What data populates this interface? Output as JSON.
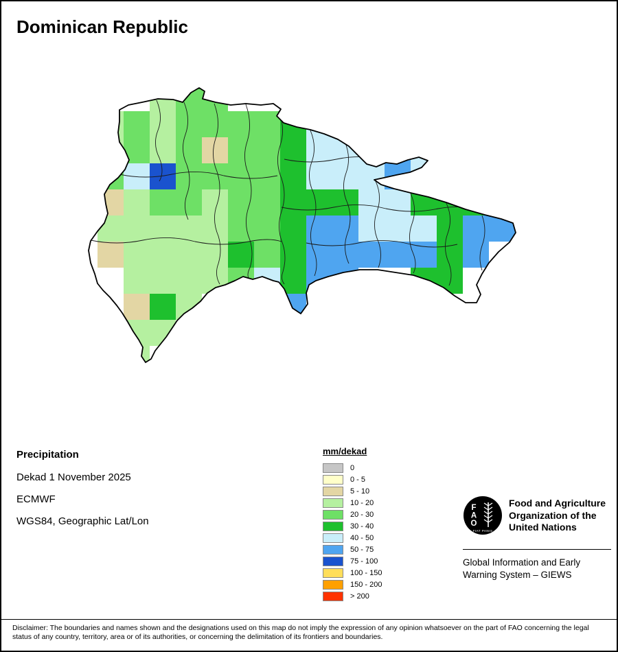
{
  "title": "Dominican Republic",
  "info": {
    "product": "Precipitation",
    "dekad": "Dekad 1 November 2025",
    "source": "ECMWF",
    "projection": "WGS84, Geographic Lat/Lon"
  },
  "legend": {
    "title": "mm/dekad",
    "entries": [
      {
        "label": "0",
        "color": "#C6C6C6"
      },
      {
        "label": "0 - 5",
        "color": "#FFFFC9"
      },
      {
        "label": "5 - 10",
        "color": "#E3D6A4"
      },
      {
        "label": "10 - 20",
        "color": "#B5F0A0"
      },
      {
        "label": "20 - 30",
        "color": "#6EE066"
      },
      {
        "label": "30 - 40",
        "color": "#1EC02E"
      },
      {
        "label": "40 - 50",
        "color": "#C9EEFA"
      },
      {
        "label": "50 - 75",
        "color": "#4FA5F0"
      },
      {
        "label": "75 - 100",
        "color": "#1A53CE"
      },
      {
        "label": "100 - 150",
        "color": "#FFDE5A"
      },
      {
        "label": "150 - 200",
        "color": "#FFA000"
      },
      {
        "label": "> 200",
        "color": "#FF3300"
      }
    ]
  },
  "map": {
    "palette": {
      "tan": "#E3D6A4",
      "lg": "#B5F0A0",
      "mg": "#6EE066",
      "g": "#1EC02E",
      "lc": "#C9EEFA",
      "b": "#4FA5F0",
      "db": "#1A53CE"
    },
    "cells": [
      [
        2,
        0,
        "lg"
      ],
      [
        3,
        0,
        "mg"
      ],
      [
        4,
        0,
        "mg"
      ],
      [
        0,
        1,
        "lg"
      ],
      [
        1,
        1,
        "mg"
      ],
      [
        2,
        1,
        "lg"
      ],
      [
        3,
        1,
        "mg"
      ],
      [
        4,
        1,
        "mg"
      ],
      [
        5,
        1,
        "mg"
      ],
      [
        6,
        1,
        "mg"
      ],
      [
        7,
        1,
        "g"
      ],
      [
        8,
        1,
        "lc"
      ],
      [
        0,
        2,
        "lg"
      ],
      [
        1,
        2,
        "mg"
      ],
      [
        2,
        2,
        "lg"
      ],
      [
        3,
        2,
        "mg"
      ],
      [
        4,
        2,
        "tan"
      ],
      [
        5,
        2,
        "mg"
      ],
      [
        6,
        2,
        "mg"
      ],
      [
        7,
        2,
        "g"
      ],
      [
        8,
        2,
        "lc"
      ],
      [
        9,
        2,
        "lc"
      ],
      [
        10,
        2,
        "lc"
      ],
      [
        11,
        2,
        "b"
      ],
      [
        12,
        2,
        "lc"
      ],
      [
        0,
        3,
        "mg"
      ],
      [
        1,
        3,
        "lc"
      ],
      [
        2,
        3,
        "db"
      ],
      [
        3,
        3,
        "mg"
      ],
      [
        4,
        3,
        "mg"
      ],
      [
        5,
        3,
        "mg"
      ],
      [
        6,
        3,
        "mg"
      ],
      [
        7,
        3,
        "g"
      ],
      [
        8,
        3,
        "lc"
      ],
      [
        9,
        3,
        "lc"
      ],
      [
        10,
        3,
        "lc"
      ],
      [
        11,
        3,
        "b"
      ],
      [
        12,
        3,
        "lc"
      ],
      [
        13,
        3,
        "g"
      ],
      [
        0,
        4,
        "tan"
      ],
      [
        1,
        4,
        "lg"
      ],
      [
        2,
        4,
        "mg"
      ],
      [
        3,
        4,
        "mg"
      ],
      [
        4,
        4,
        "lg"
      ],
      [
        5,
        4,
        "mg"
      ],
      [
        6,
        4,
        "mg"
      ],
      [
        7,
        4,
        "g"
      ],
      [
        8,
        4,
        "g"
      ],
      [
        9,
        4,
        "g"
      ],
      [
        10,
        4,
        "lc"
      ],
      [
        11,
        4,
        "lc"
      ],
      [
        12,
        4,
        "g"
      ],
      [
        13,
        4,
        "g"
      ],
      [
        14,
        4,
        "g"
      ],
      [
        0,
        5,
        "lg"
      ],
      [
        1,
        5,
        "lg"
      ],
      [
        2,
        5,
        "lg"
      ],
      [
        3,
        5,
        "lg"
      ],
      [
        4,
        5,
        "lg"
      ],
      [
        5,
        5,
        "mg"
      ],
      [
        6,
        5,
        "mg"
      ],
      [
        7,
        5,
        "g"
      ],
      [
        8,
        5,
        "b"
      ],
      [
        9,
        5,
        "b"
      ],
      [
        10,
        5,
        "lc"
      ],
      [
        11,
        5,
        "lc"
      ],
      [
        12,
        5,
        "lc"
      ],
      [
        13,
        5,
        "g"
      ],
      [
        14,
        5,
        "b"
      ],
      [
        15,
        5,
        "b"
      ],
      [
        0,
        6,
        "tan"
      ],
      [
        1,
        6,
        "lg"
      ],
      [
        2,
        6,
        "lg"
      ],
      [
        3,
        6,
        "lg"
      ],
      [
        4,
        6,
        "lg"
      ],
      [
        5,
        6,
        "g"
      ],
      [
        6,
        6,
        "mg"
      ],
      [
        7,
        6,
        "g"
      ],
      [
        8,
        6,
        "b"
      ],
      [
        9,
        6,
        "b"
      ],
      [
        10,
        6,
        "b"
      ],
      [
        11,
        6,
        "b"
      ],
      [
        12,
        6,
        "b"
      ],
      [
        13,
        6,
        "g"
      ],
      [
        14,
        6,
        "b"
      ],
      [
        1,
        7,
        "lg"
      ],
      [
        2,
        7,
        "lg"
      ],
      [
        3,
        7,
        "lg"
      ],
      [
        4,
        7,
        "lg"
      ],
      [
        5,
        7,
        "mg"
      ],
      [
        6,
        7,
        "lc"
      ],
      [
        7,
        7,
        "g"
      ],
      [
        8,
        7,
        "b"
      ],
      [
        9,
        7,
        "b"
      ],
      [
        12,
        7,
        "g"
      ],
      [
        13,
        7,
        "g"
      ],
      [
        1,
        8,
        "tan"
      ],
      [
        2,
        8,
        "g"
      ],
      [
        3,
        8,
        "lg"
      ],
      [
        6,
        8,
        "lc"
      ],
      [
        7,
        8,
        "b"
      ],
      [
        1,
        9,
        "lg"
      ],
      [
        2,
        9,
        "lg"
      ],
      [
        1,
        10,
        "lg"
      ]
    ]
  },
  "fao": {
    "org_line1": "Food and Agriculture",
    "org_line2": "Organization of the",
    "org_line3": "United Nations",
    "giews_line1": "Global Information and Early",
    "giews_line2": "Warning System – GIEWS",
    "logo_text": "FAO",
    "logo_motto": "FIAT PANIS"
  },
  "disclaimer": "Disclaimer: The boundaries and names shown and the designations used on this map do not imply the expression of any opinion whatsoever on the part of FAO concerning the legal status of any country, territory, area or of its authorities, or concerning the delimitation of its frontiers and boundaries."
}
